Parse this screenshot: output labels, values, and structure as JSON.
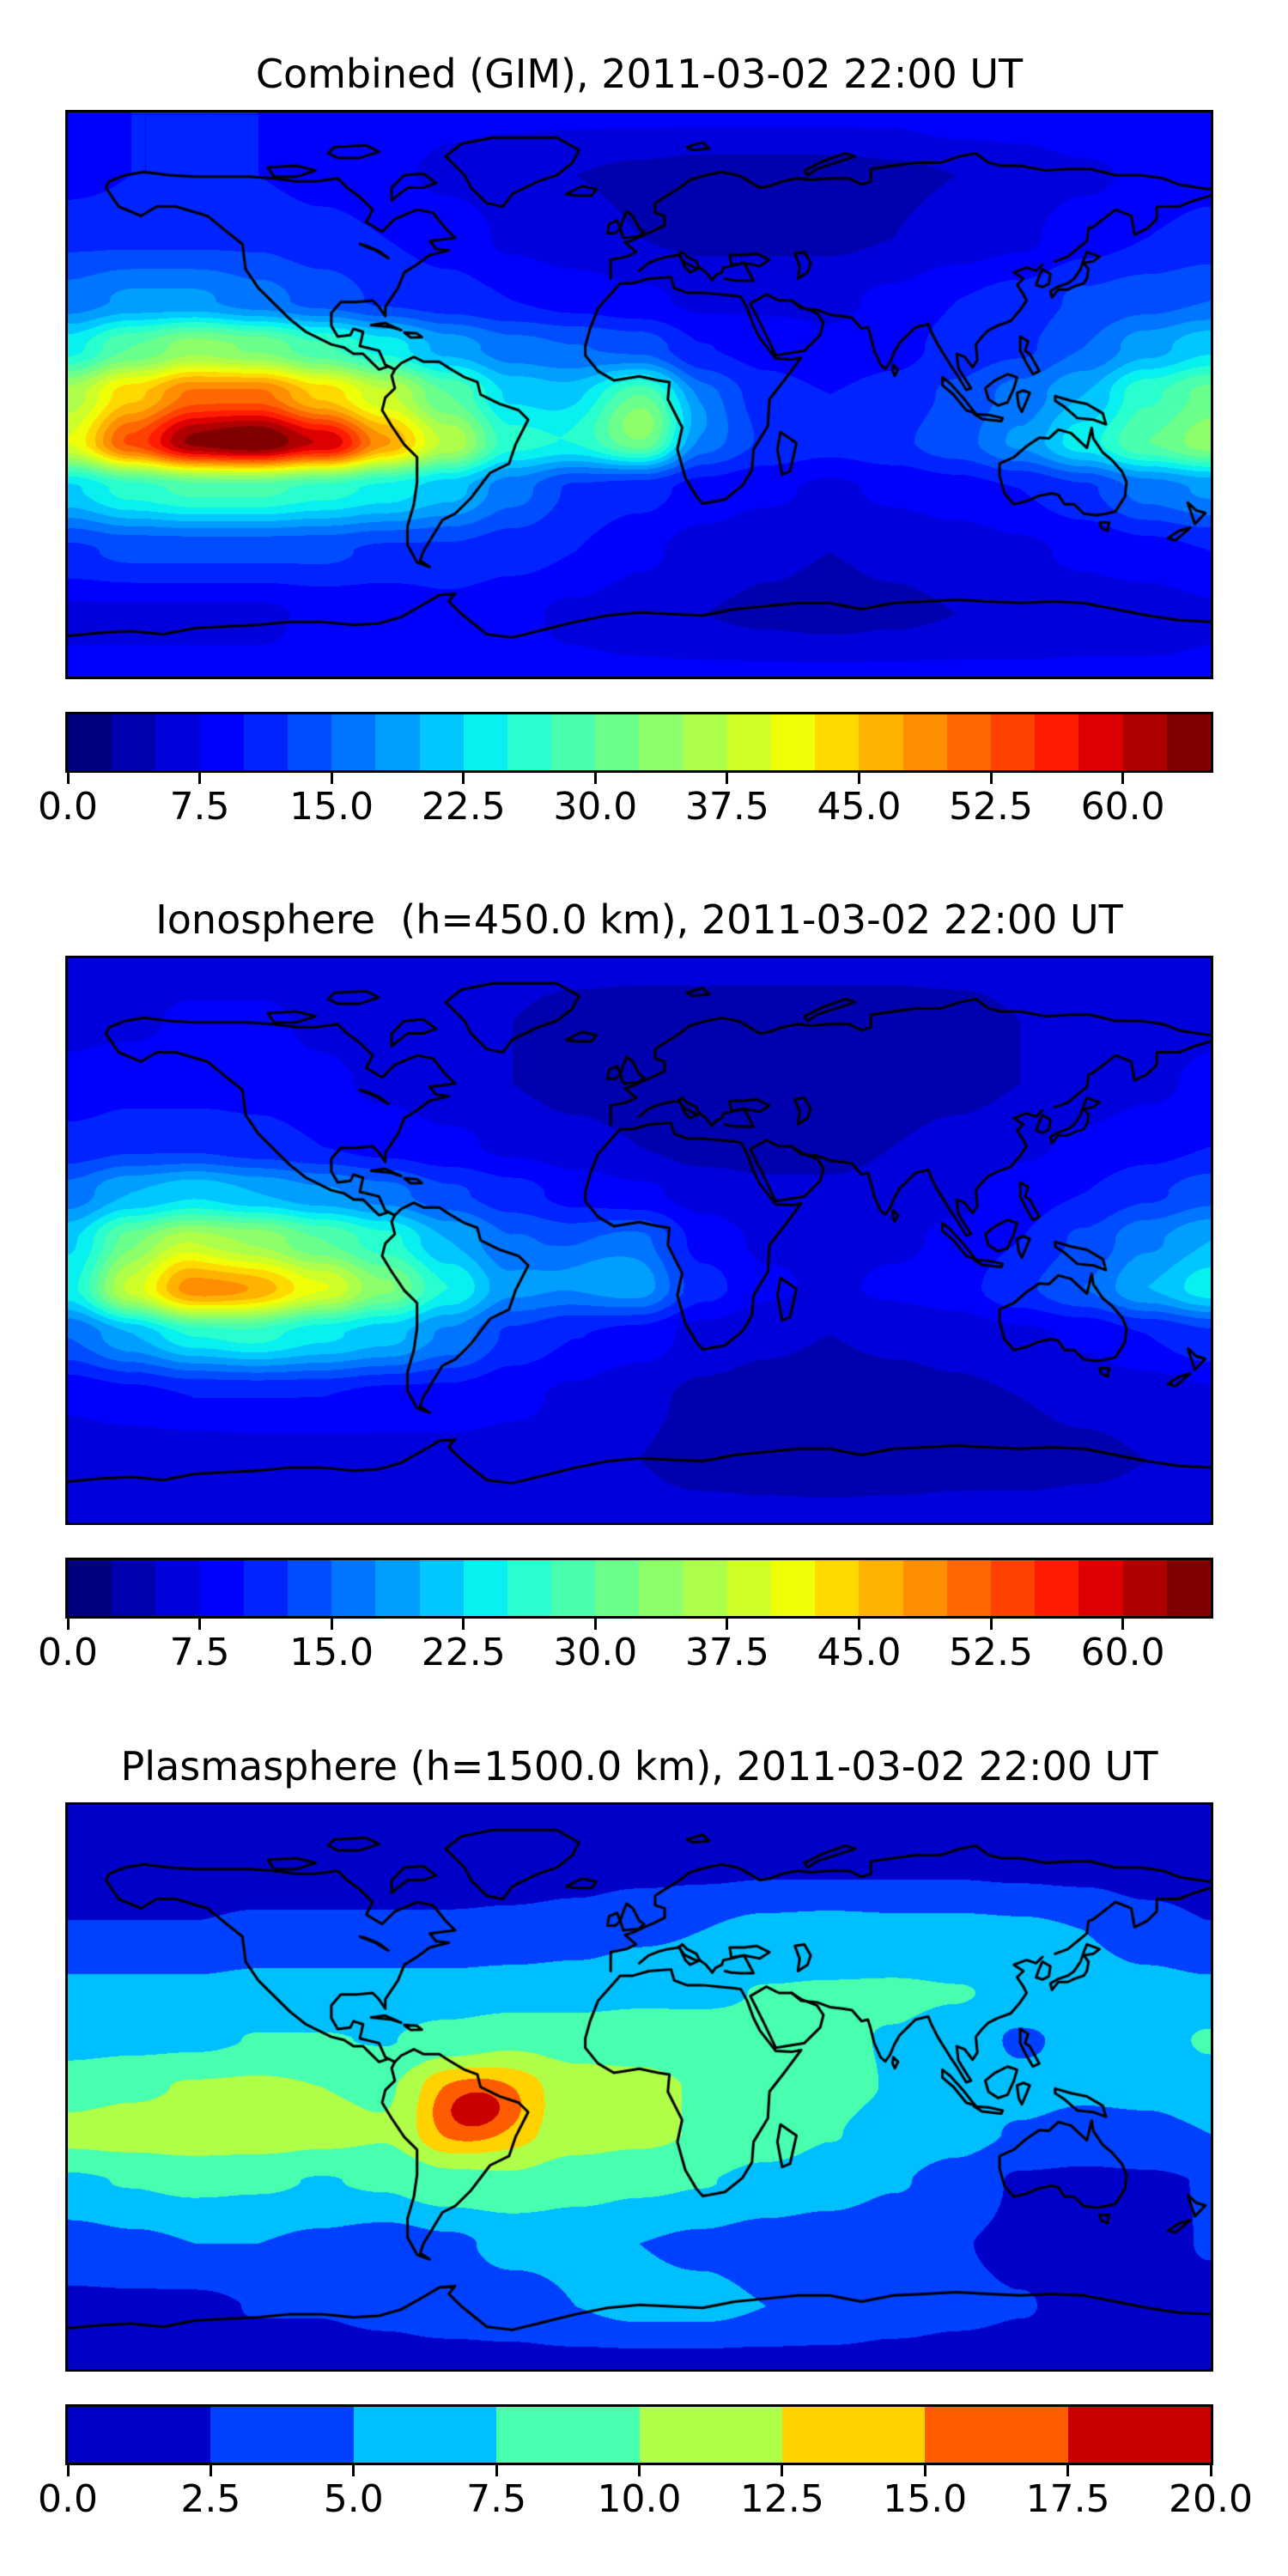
{
  "figure": {
    "background": "#ffffff"
  },
  "chart_data": [
    {
      "type": "heatmap",
      "title": "Combined (GIM), 2011-03-02 22:00 UT",
      "projection": "equirectangular",
      "lon_range": [
        -180,
        180
      ],
      "lat_range": [
        -90,
        90
      ],
      "vmin": 0,
      "vmax": 65,
      "level_step": 2.5,
      "colormap": "jet",
      "colors": [
        "#000080",
        "#0000AE",
        "#0000DD",
        "#0000FF",
        "#0024FF",
        "#004DFF",
        "#0075FF",
        "#009EFF",
        "#00C7FF",
        "#08F0EF",
        "#29FFCE",
        "#4AFFAD",
        "#6BFF8C",
        "#8CFF6B",
        "#ADFF4A",
        "#CEFF29",
        "#EFFF08",
        "#FFD900",
        "#FFB300",
        "#FF8E00",
        "#FF6800",
        "#FF4200",
        "#FF1C00",
        "#DC0000",
        "#AE0000",
        "#800000"
      ],
      "colorbar": {
        "orientation": "horizontal",
        "tick_values": [
          0,
          7.5,
          15,
          22.5,
          30,
          37.5,
          45,
          52.5,
          60
        ],
        "tick_labels": [
          "0.0",
          "7.5",
          "15.0",
          "22.5",
          "30.0",
          "37.5",
          "45.0",
          "52.5",
          "60.0"
        ]
      },
      "grid": {
        "lons": [
          -180,
          -160,
          -140,
          -120,
          -100,
          -80,
          -60,
          -40,
          -20,
          0,
          20,
          40,
          60,
          80,
          100,
          120,
          140,
          160,
          180
        ],
        "lats": [
          90,
          70,
          50,
          30,
          15,
          0,
          -15,
          -30,
          -50,
          -70,
          -90
        ],
        "values": [
          [
            10,
            10,
            10,
            10,
            9,
            9,
            8,
            8,
            8,
            8,
            8,
            8,
            8,
            8,
            9,
            9,
            10,
            10,
            10
          ],
          [
            9,
            10,
            10,
            10,
            9,
            8,
            7,
            6,
            5,
            4.5,
            4,
            4,
            4,
            4.5,
            5,
            6,
            7,
            8,
            9
          ],
          [
            12,
            12,
            12,
            12,
            11,
            10,
            9,
            7,
            6,
            5,
            4.5,
            4.5,
            4.5,
            5,
            6,
            7,
            9,
            10,
            11
          ],
          [
            16,
            18,
            18,
            16,
            14,
            12,
            11,
            10,
            9,
            8,
            7,
            7,
            7,
            8,
            10,
            11,
            13,
            14,
            15
          ],
          [
            24,
            30,
            34,
            32,
            28,
            24,
            19,
            16,
            15,
            14,
            10,
            9,
            8,
            9,
            11,
            12,
            15,
            19,
            22
          ],
          [
            36,
            44,
            50,
            50,
            44,
            38,
            30,
            22,
            20,
            24,
            14,
            11,
            10,
            11,
            13,
            16,
            20,
            27,
            31
          ],
          [
            40,
            52,
            60,
            62,
            56,
            47,
            37,
            26,
            24,
            28,
            15,
            12,
            11,
            12,
            14,
            18,
            24,
            30,
            34
          ],
          [
            22,
            26,
            28,
            28,
            26,
            24,
            21,
            16,
            12,
            11,
            9,
            8,
            7,
            8,
            9,
            10,
            12,
            16,
            18
          ],
          [
            12,
            13,
            13,
            13,
            13,
            12,
            12,
            11,
            10,
            8,
            6.5,
            5.5,
            5,
            5.5,
            6,
            7,
            8,
            9,
            10
          ],
          [
            7,
            7,
            7,
            7,
            8,
            8,
            9,
            8,
            7,
            6,
            5,
            4.5,
            4,
            4.5,
            5,
            5,
            6,
            6,
            7
          ],
          [
            8,
            8,
            8,
            8,
            8,
            8,
            8,
            8,
            8,
            8,
            8,
            8,
            8,
            8,
            8,
            8,
            8,
            8,
            8
          ]
        ]
      },
      "bumps": [
        {
          "lon": -128,
          "lat": -14,
          "amp": 4,
          "slon": 20,
          "slat": 8
        },
        {
          "lon": -95,
          "lat": -17,
          "amp": 3,
          "slon": 9,
          "slat": 6
        },
        {
          "lon": 2,
          "lat": -6,
          "amp": 8,
          "slon": 14,
          "slat": 8
        }
      ]
    },
    {
      "type": "heatmap",
      "title": "Ionosphere  (h=450.0 km), 2011-03-02 22:00 UT",
      "projection": "equirectangular",
      "lon_range": [
        -180,
        180
      ],
      "lat_range": [
        -90,
        90
      ],
      "vmin": 0,
      "vmax": 65,
      "level_step": 2.5,
      "colormap": "jet",
      "colors": [
        "#000080",
        "#0000AE",
        "#0000DD",
        "#0000FF",
        "#0024FF",
        "#004DFF",
        "#0075FF",
        "#009EFF",
        "#00C7FF",
        "#08F0EF",
        "#29FFCE",
        "#4AFFAD",
        "#6BFF8C",
        "#8CFF6B",
        "#ADFF4A",
        "#CEFF29",
        "#EFFF08",
        "#FFD900",
        "#FFB300",
        "#FF8E00",
        "#FF6800",
        "#FF4200",
        "#FF1C00",
        "#DC0000",
        "#AE0000",
        "#800000"
      ],
      "colorbar": {
        "orientation": "horizontal",
        "tick_values": [
          0,
          7.5,
          15,
          22.5,
          30,
          37.5,
          45,
          52.5,
          60
        ],
        "tick_labels": [
          "0.0",
          "7.5",
          "15.0",
          "22.5",
          "30.0",
          "37.5",
          "45.0",
          "52.5",
          "60.0"
        ]
      },
      "grid": {
        "lons": [
          -180,
          -160,
          -140,
          -120,
          -100,
          -80,
          -60,
          -40,
          -20,
          0,
          20,
          40,
          60,
          80,
          100,
          120,
          140,
          160,
          180
        ],
        "lats": [
          90,
          70,
          50,
          30,
          15,
          0,
          -15,
          -30,
          -50,
          -70,
          -90
        ],
        "values": [
          [
            6,
            6,
            6,
            6,
            6,
            6,
            6,
            6,
            6,
            6,
            6,
            6,
            6,
            6,
            6,
            6,
            6,
            6,
            6
          ],
          [
            7,
            7,
            8,
            8,
            7,
            6,
            5,
            5,
            4,
            3.5,
            3.5,
            3.5,
            3.5,
            3.5,
            4,
            5,
            5.5,
            6,
            7
          ],
          [
            8,
            9,
            9,
            9,
            8,
            7,
            6,
            5,
            4,
            3,
            2.5,
            2.5,
            2.5,
            3,
            4,
            5,
            6,
            7,
            8
          ],
          [
            11,
            12,
            12,
            11,
            10,
            9,
            8,
            7,
            6,
            5,
            4,
            4,
            4,
            5,
            6,
            7,
            8,
            9,
            10
          ],
          [
            16,
            20,
            22,
            20,
            18,
            16,
            13,
            11,
            9,
            8,
            6.5,
            5.5,
            5.5,
            6,
            7,
            9,
            10,
            12,
            14
          ],
          [
            22,
            30,
            34,
            34,
            30,
            26,
            20,
            15,
            13,
            15,
            9,
            7,
            6.5,
            7,
            8,
            10,
            13,
            17,
            20
          ],
          [
            24,
            36,
            43,
            44,
            40,
            33,
            25,
            18,
            16,
            18,
            11,
            8,
            7,
            8,
            9,
            12,
            15,
            20,
            24
          ],
          [
            15,
            19,
            23,
            25,
            23,
            21,
            17,
            12,
            10,
            9,
            6.5,
            5.5,
            5,
            5.5,
            6,
            7,
            8,
            10,
            12
          ],
          [
            8,
            9,
            10,
            10,
            10,
            9,
            9,
            8,
            7,
            5.5,
            4.5,
            4,
            3.5,
            4,
            4.5,
            5,
            5.5,
            6,
            7
          ],
          [
            5.5,
            5.5,
            5.5,
            6,
            6,
            6.5,
            6.5,
            6.5,
            6,
            5,
            4,
            3.5,
            3,
            3.5,
            4,
            4,
            4.5,
            5,
            5.5
          ],
          [
            6,
            6,
            6,
            6,
            6,
            6,
            6,
            6,
            6,
            6,
            6,
            6,
            6,
            6,
            6,
            6,
            6,
            6,
            6
          ]
        ]
      },
      "bumps": [
        {
          "lon": -138,
          "lat": -19,
          "amp": 6,
          "slon": 16,
          "slat": 8
        },
        {
          "lon": -146,
          "lat": -4,
          "amp": 4,
          "slon": 11,
          "slat": 6
        },
        {
          "lon": -15,
          "lat": -8,
          "amp": 3,
          "slon": 12,
          "slat": 8
        }
      ]
    },
    {
      "type": "heatmap",
      "title": "Plasmasphere (h=1500.0 km), 2011-03-02 22:00 UT",
      "projection": "equirectangular",
      "lon_range": [
        -180,
        180
      ],
      "lat_range": [
        -90,
        90
      ],
      "vmin": 0,
      "vmax": 20,
      "level_step": 2.5,
      "colormap": "jet",
      "colors": [
        "#0000C8",
        "#0040FF",
        "#00BFFF",
        "#48FFAF",
        "#AFFF48",
        "#FFD200",
        "#FF5C00",
        "#C80000"
      ],
      "colorbar": {
        "orientation": "horizontal",
        "tick_values": [
          0,
          2.5,
          5,
          7.5,
          10,
          12.5,
          15,
          17.5,
          20
        ],
        "tick_labels": [
          "0.0",
          "2.5",
          "5.0",
          "7.5",
          "10.0",
          "12.5",
          "15.0",
          "17.5",
          "20.0"
        ]
      },
      "grid": {
        "lons": [
          -180,
          -160,
          -140,
          -120,
          -100,
          -80,
          -60,
          -40,
          -20,
          0,
          20,
          40,
          60,
          80,
          100,
          120,
          140,
          160,
          180
        ],
        "lats": [
          90,
          70,
          50,
          30,
          15,
          0,
          -15,
          -30,
          -50,
          -70,
          -90
        ],
        "values": [
          [
            1,
            1,
            1,
            1,
            1,
            1,
            1,
            1,
            1,
            1,
            1,
            1,
            1,
            1,
            1,
            1,
            1,
            1,
            1
          ],
          [
            1,
            1,
            1,
            1,
            1,
            1,
            1,
            1.2,
            1.5,
            1.8,
            2,
            2.2,
            2.2,
            2.2,
            2.2,
            2,
            1.8,
            1.3,
            1
          ],
          [
            2.6,
            2.6,
            2.6,
            3,
            3,
            3,
            3,
            3.2,
            3.6,
            4.6,
            5,
            5.6,
            5.8,
            5.6,
            5.6,
            5.4,
            5,
            3.6,
            2.6
          ],
          [
            5.6,
            5.6,
            5.6,
            6,
            6,
            6,
            6,
            6.3,
            6.6,
            7,
            7.1,
            7.6,
            7.7,
            7.8,
            7.6,
            7.1,
            6.6,
            6,
            5.6
          ],
          [
            6.5,
            6.8,
            7,
            7.6,
            7.6,
            7.4,
            8.5,
            9.5,
            9,
            9,
            8.6,
            8.2,
            7.8,
            7.4,
            6.8,
            4.6,
            5.8,
            6.4,
            7.8
          ],
          [
            9,
            9.6,
            10.2,
            10.4,
            10,
            9.6,
            13,
            13,
            11,
            10.6,
            9.8,
            9,
            8.2,
            7.4,
            6.8,
            5.8,
            5.4,
            5.6,
            6.4
          ],
          [
            10.8,
            11.2,
            11.6,
            11.4,
            10.8,
            10.2,
            13.5,
            12.5,
            11,
            10.6,
            9.8,
            8.8,
            7.6,
            6.6,
            5.8,
            4.8,
            4.2,
            4.4,
            5
          ],
          [
            7.2,
            7.6,
            8,
            7.8,
            7.4,
            7.8,
            9.2,
            9.6,
            8.6,
            8,
            7.6,
            6.8,
            6.2,
            5.2,
            4.2,
            2.2,
            2,
            2.2,
            2.6
          ],
          [
            4,
            4.6,
            5,
            5,
            4.6,
            4,
            4.6,
            5.6,
            5.6,
            5,
            4.6,
            4,
            3.6,
            3,
            2.6,
            2,
            2,
            2,
            2.6
          ],
          [
            2,
            2,
            2,
            2.6,
            2.6,
            3,
            3.6,
            4,
            5,
            5.6,
            5.6,
            5,
            4.6,
            3.6,
            3,
            2.6,
            2,
            2,
            2
          ],
          [
            1.5,
            1.5,
            1.5,
            1.5,
            1.5,
            1.5,
            1.5,
            1.5,
            1.5,
            1.5,
            1.5,
            1.5,
            1.5,
            1.5,
            1.5,
            1.5,
            1.5,
            1.5,
            1.5
          ]
        ]
      },
      "bumps": [
        {
          "lon": -51,
          "lat": -7,
          "amp": 6,
          "slon": 10,
          "slat": 7
        }
      ]
    }
  ]
}
